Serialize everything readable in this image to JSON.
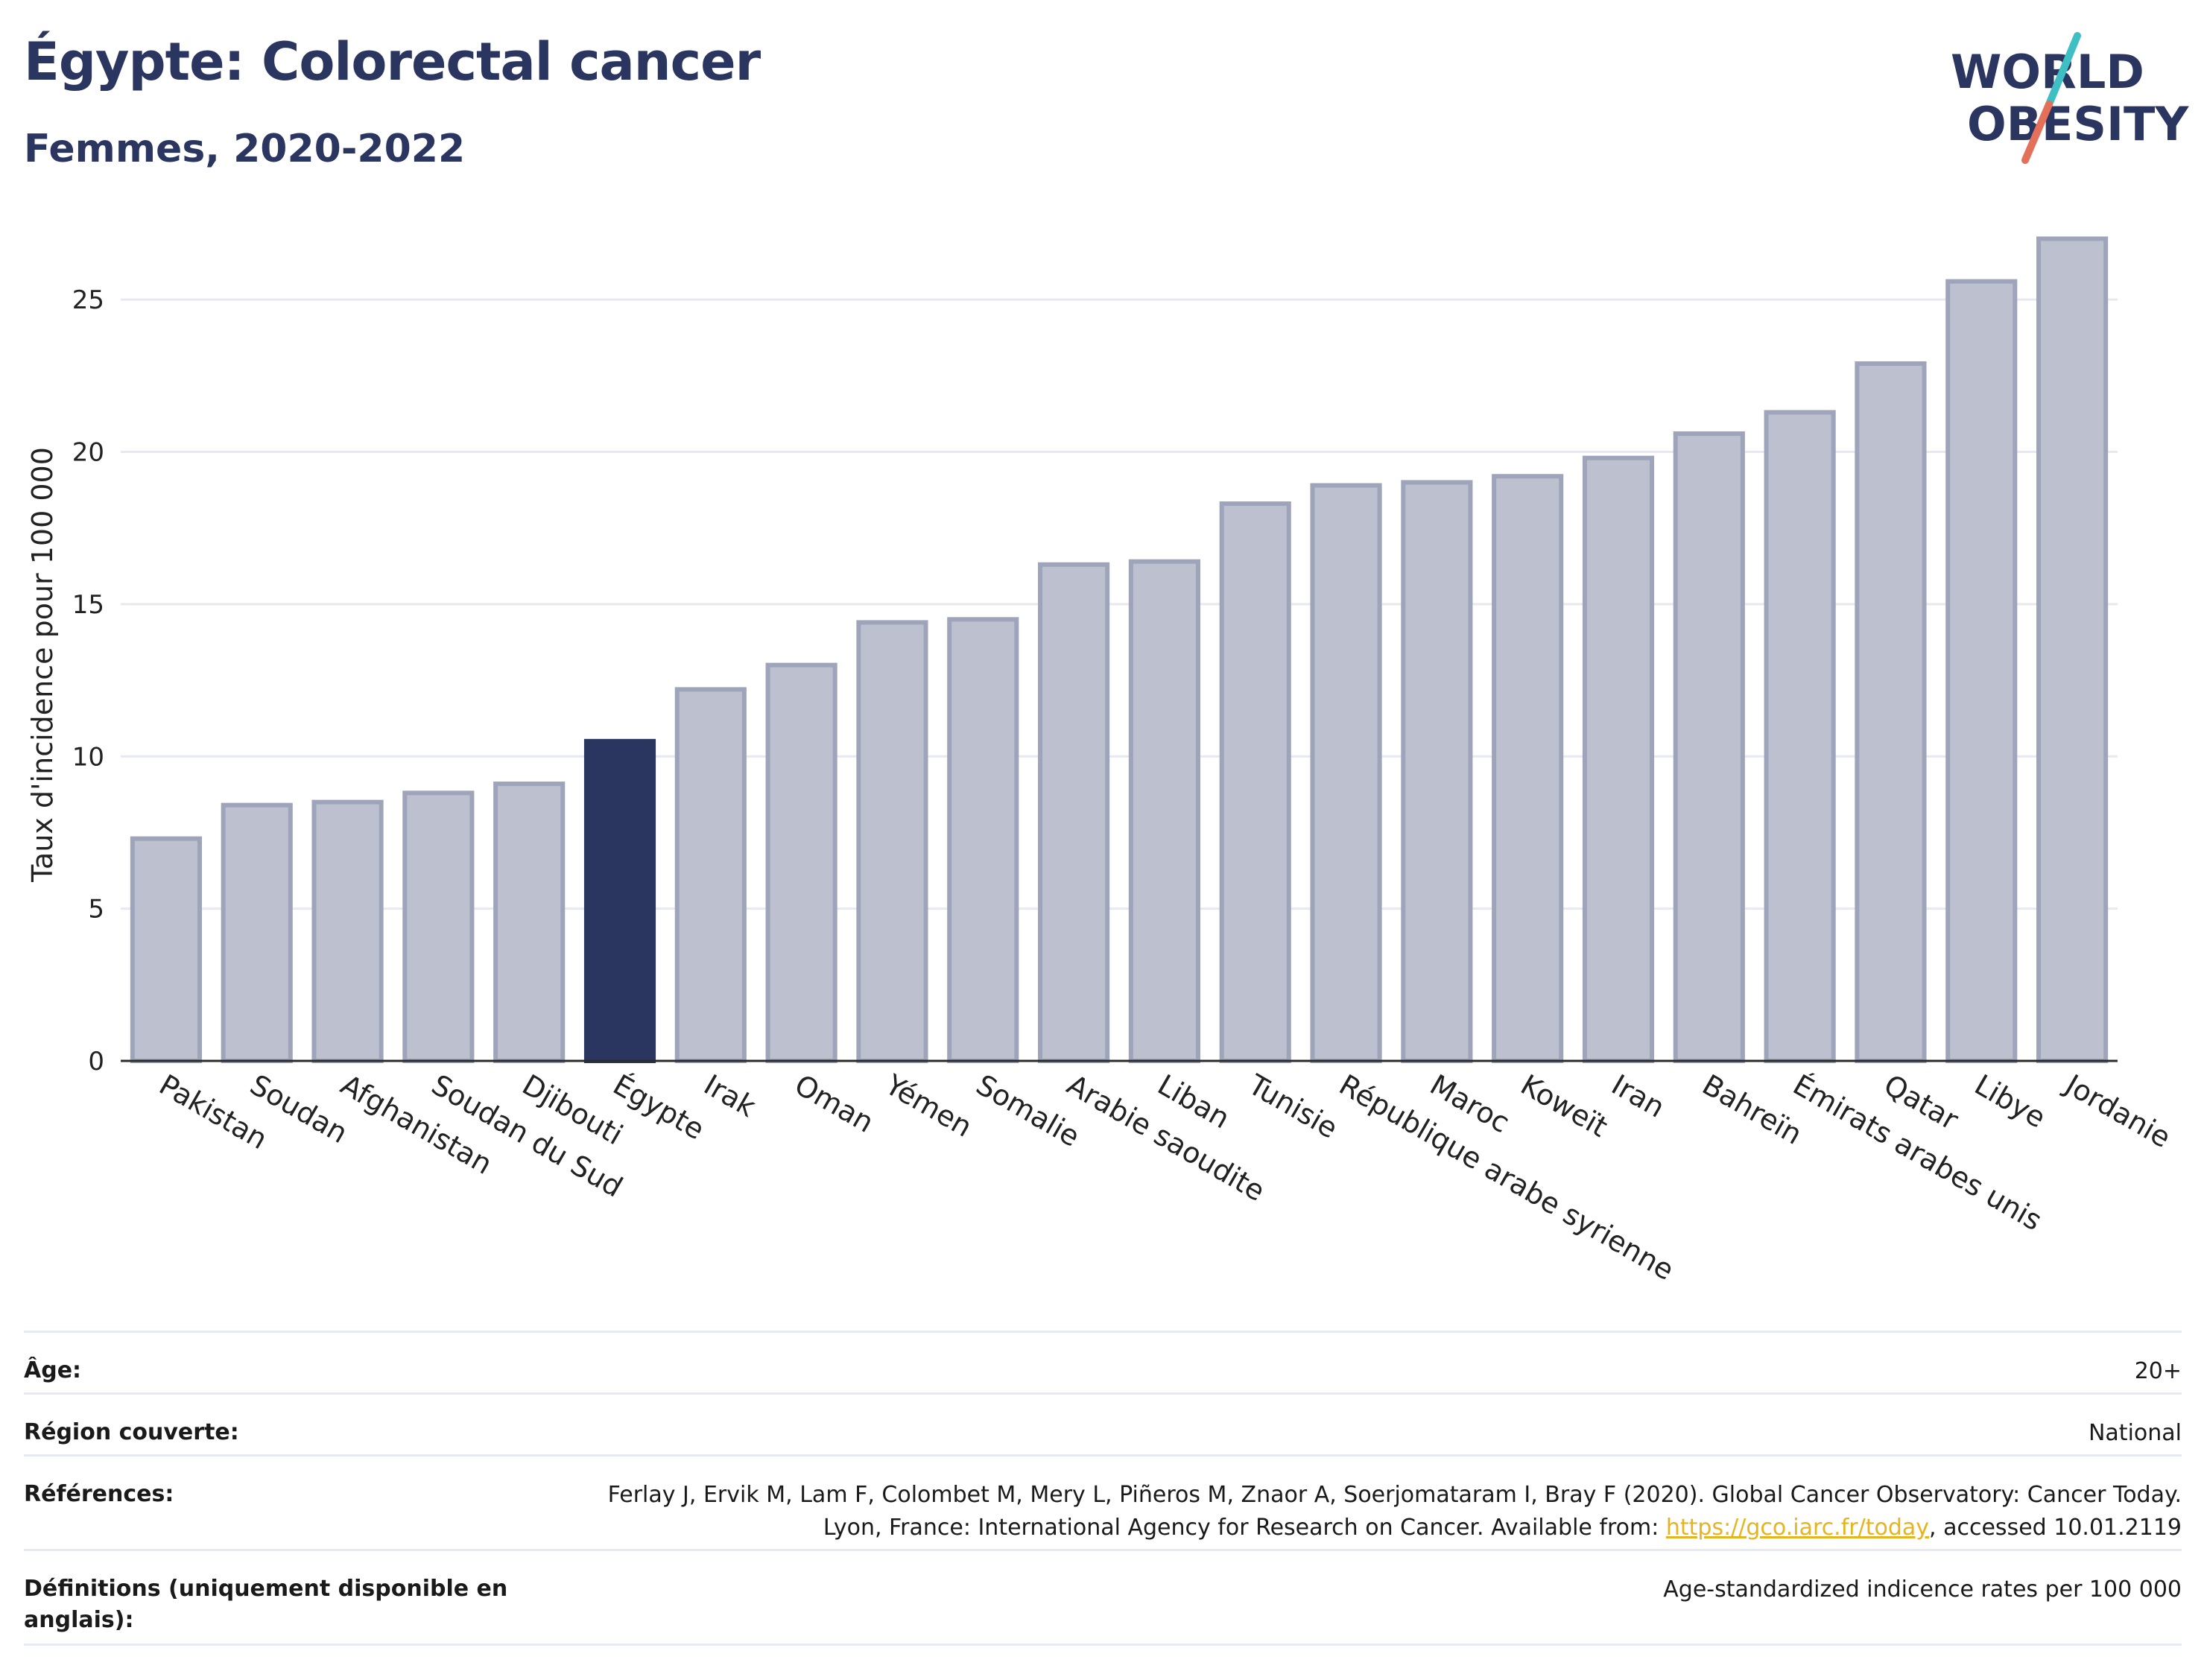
{
  "header": {
    "title": "Égypte: Colorectal cancer",
    "subtitle": "Femmes, 2020-2022"
  },
  "logo": {
    "line1": "WORLD",
    "line2": "OBESITY",
    "colors": {
      "text": "#2a3560",
      "slash_teal": "#3dbfc4",
      "slash_coral": "#e5705a"
    }
  },
  "colors": {
    "bar": "#bcc0cf",
    "bar_edge": "#9ea4ba",
    "highlight": "#2a3560",
    "grid": "#e6e9ef",
    "axis": "#2b2b2b"
  },
  "chart_data": {
    "type": "bar",
    "ylabel": "Taux d'incidence pour 100 000",
    "xlabel": "",
    "ylim": [
      0,
      27.5
    ],
    "yticks": [
      0,
      5,
      10,
      15,
      20,
      25
    ],
    "grid": true,
    "highlight": "Égypte",
    "categories": [
      "Pakistan",
      "Soudan",
      "Afghanistan",
      "Soudan du Sud",
      "Djibouti",
      "Égypte",
      "Irak",
      "Oman",
      "Yémen",
      "Somalie",
      "Arabie saoudite",
      "Liban",
      "Tunisie",
      "République arabe syrienne",
      "Maroc",
      "Koweït",
      "Iran",
      "Bahreïn",
      "Émirats arabes unis",
      "Qatar",
      "Libye",
      "Jordanie"
    ],
    "values": [
      7.3,
      8.4,
      8.5,
      8.8,
      9.1,
      10.5,
      12.2,
      13.0,
      14.4,
      14.5,
      16.3,
      16.4,
      18.3,
      18.9,
      19.0,
      19.2,
      19.8,
      20.6,
      21.3,
      22.9,
      25.6,
      27.0
    ]
  },
  "meta": [
    {
      "key": "Âge:",
      "value": "20+"
    },
    {
      "key": "Région couverte:",
      "value": "National"
    },
    {
      "key": "Références:",
      "value_before": "Ferlay J, Ervik M, Lam F, Colombet M, Mery L, Piñeros M, Znaor A, Soerjomataram I, Bray F (2020). Global Cancer Observatory: Cancer Today. Lyon, France: International Agency for Research on Cancer. Available from: ",
      "link": "https://gco.iarc.fr/today",
      "value_after": ", accessed 10.01.2119"
    },
    {
      "key": "Définitions (uniquement disponible en anglais):",
      "value": "Age-standardized indicence rates per 100 000"
    }
  ]
}
